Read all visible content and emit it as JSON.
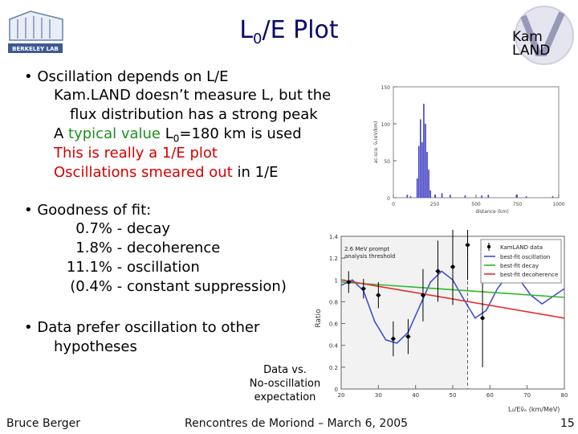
{
  "slide": {
    "title_main": "L",
    "title_sub": "0",
    "title_rest": "/E Plot",
    "lab_name": "BERKELEY LAB",
    "kamland_logo_line1": "Kam",
    "kamland_logo_line2": "LAND",
    "bullet1": {
      "head": "• Oscillation depends on L/E",
      "line1": "Kam.LAND doesn’t measure L, but the",
      "line2": "flux distribution has a strong peak",
      "line3_pre": "A ",
      "line3_green": "typical value",
      "line3_mid": " L",
      "line3_sub": "0",
      "line3_post": "=180 km is used",
      "line4": "This is really a 1/E plot",
      "line5_red": "Oscillations smeared out",
      "line5_post": " in 1/E"
    },
    "bullet2": {
      "head": "• Goodness of fit:",
      "rows": [
        {
          "pct": "0.7%",
          "label": "-  decay"
        },
        {
          "pct": "1.8%",
          "label": "-  decoherence"
        },
        {
          "pct": "11.1%",
          "label": "-  oscillation"
        },
        {
          "pct": "(0.4%",
          "label": "-  constant suppression)"
        }
      ]
    },
    "bullet3": {
      "head": "• Data prefer oscillation to other",
      "line2": "hypotheses"
    },
    "caption": {
      "line1": "Data vs.",
      "line2": "No-oscillation",
      "line3": "expectation"
    },
    "footer": {
      "author": "Bruce Berger",
      "event": "Rencontres de Moriond – March 6, 2005",
      "page": "15"
    }
  },
  "chart_data": [
    {
      "type": "bar",
      "ylabel": "ac-sce. ν̄ₑ(eV/km)",
      "xlabel": "distance (km)",
      "xlim": [
        0,
        1000
      ],
      "ylim": [
        0,
        150
      ],
      "xticks": [
        "0",
        "250",
        "500",
        "750",
        "1000"
      ],
      "yticks": [
        "0",
        "50",
        "100",
        "150"
      ],
      "color": "#4646c8",
      "bars": [
        {
          "x": 80,
          "value": 4
        },
        {
          "x": 100,
          "value": 2
        },
        {
          "x": 140,
          "value": 26
        },
        {
          "x": 150,
          "value": 70
        },
        {
          "x": 160,
          "value": 106
        },
        {
          "x": 170,
          "value": 75
        },
        {
          "x": 180,
          "value": 127
        },
        {
          "x": 190,
          "value": 100
        },
        {
          "x": 200,
          "value": 62
        },
        {
          "x": 210,
          "value": 38
        },
        {
          "x": 220,
          "value": 10
        },
        {
          "x": 250,
          "value": 4
        },
        {
          "x": 290,
          "value": 6
        },
        {
          "x": 340,
          "value": 4
        },
        {
          "x": 430,
          "value": 3
        },
        {
          "x": 530,
          "value": 3
        },
        {
          "x": 570,
          "value": 4
        },
        {
          "x": 740,
          "value": 4
        },
        {
          "x": 800,
          "value": 2
        },
        {
          "x": 960,
          "value": 2
        }
      ]
    },
    {
      "type": "line",
      "ylabel": "Ratio",
      "xlabel": "L₀/Eν̄ₑ (km/MeV)",
      "xlim": [
        20,
        80
      ],
      "ylim": [
        0,
        1.4
      ],
      "xticks": [
        "20",
        "30",
        "40",
        "50",
        "60",
        "70",
        "80"
      ],
      "yticks": [
        "0",
        "0.2",
        "0.4",
        "0.6",
        "0.8",
        "1",
        "1.2",
        "1.4"
      ],
      "box_title1": "2.6 MeV prompt",
      "box_title2": "analysis threshold",
      "threshold_x": 54,
      "legend_placement": "top-right",
      "data": {
        "name": "KamLAND data",
        "x": [
          22,
          26,
          30,
          34,
          38,
          42,
          46,
          50,
          54,
          58
        ],
        "y": [
          0.98,
          0.92,
          0.86,
          0.46,
          0.48,
          0.86,
          1.08,
          1.12,
          1.32,
          0.65
        ],
        "err": [
          0.1,
          0.09,
          0.12,
          0.16,
          0.16,
          0.24,
          0.28,
          0.35,
          0.32,
          0.45
        ]
      },
      "series": [
        {
          "name": "best-fit oscillation",
          "color": "#4050d0",
          "x": [
            20,
            23,
            26,
            29,
            32,
            35,
            38,
            41,
            44,
            47,
            50,
            53,
            56,
            59,
            62,
            65,
            68,
            71,
            74,
            77,
            80
          ],
          "y": [
            0.95,
            1.0,
            0.9,
            0.62,
            0.45,
            0.42,
            0.52,
            0.75,
            0.98,
            1.08,
            1.0,
            0.82,
            0.65,
            0.72,
            0.92,
            1.05,
            1.0,
            0.86,
            0.78,
            0.85,
            0.92
          ]
        },
        {
          "name": "best-fit decay",
          "color": "#2eb82e",
          "x": [
            20,
            80
          ],
          "y": [
            0.98,
            0.84
          ]
        },
        {
          "name": "best-fit decoherence",
          "color": "#e03030",
          "x": [
            20,
            80
          ],
          "y": [
            1.0,
            0.65
          ]
        }
      ]
    }
  ]
}
